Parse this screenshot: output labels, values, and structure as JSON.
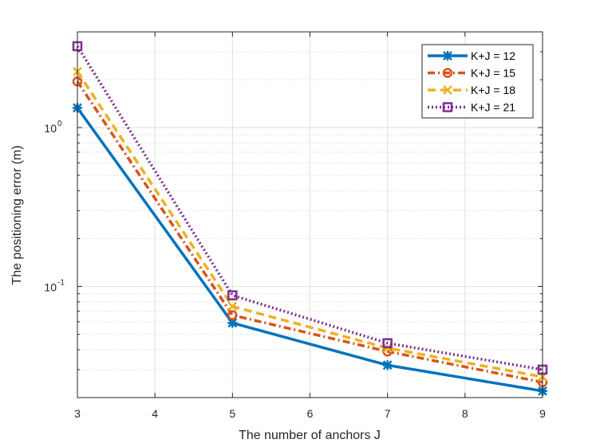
{
  "chart_data": {
    "type": "line",
    "y_scale": "log",
    "xlabel": "The number of anchors J",
    "ylabel": "The positioning error (m)",
    "xlim": [
      3,
      9
    ],
    "ylim": [
      0.02,
      4.0
    ],
    "x_ticks": [
      {
        "value": 3,
        "label": "3"
      },
      {
        "value": 4,
        "label": "4"
      },
      {
        "value": 5,
        "label": "5"
      },
      {
        "value": 6,
        "label": "6"
      },
      {
        "value": 7,
        "label": "7"
      },
      {
        "value": 8,
        "label": "8"
      },
      {
        "value": 9,
        "label": "9"
      }
    ],
    "y_ticks": [
      {
        "value": 0.1,
        "base": "10",
        "exp": "-1"
      },
      {
        "value": 1.0,
        "base": "10",
        "exp": "0"
      }
    ],
    "grid": true,
    "legend_position": "top-right",
    "x": [
      3,
      5,
      7,
      9
    ],
    "series": [
      {
        "name": "K+J = 12",
        "values": [
          1.33,
          0.059,
          0.032,
          0.022
        ],
        "color": "#0072BD",
        "dash": "solid",
        "marker": "asterisk"
      },
      {
        "name": "K+J = 15",
        "values": [
          1.95,
          0.066,
          0.039,
          0.025
        ],
        "color": "#D95319",
        "dash": "dashdot",
        "marker": "circle"
      },
      {
        "name": "K+J = 18",
        "values": [
          2.25,
          0.075,
          0.041,
          0.027
        ],
        "color": "#EDB120",
        "dash": "dashed",
        "marker": "x"
      },
      {
        "name": "K+J = 21",
        "values": [
          3.25,
          0.088,
          0.044,
          0.03
        ],
        "color": "#7E2F8E",
        "dash": "dotted",
        "marker": "square"
      }
    ]
  }
}
